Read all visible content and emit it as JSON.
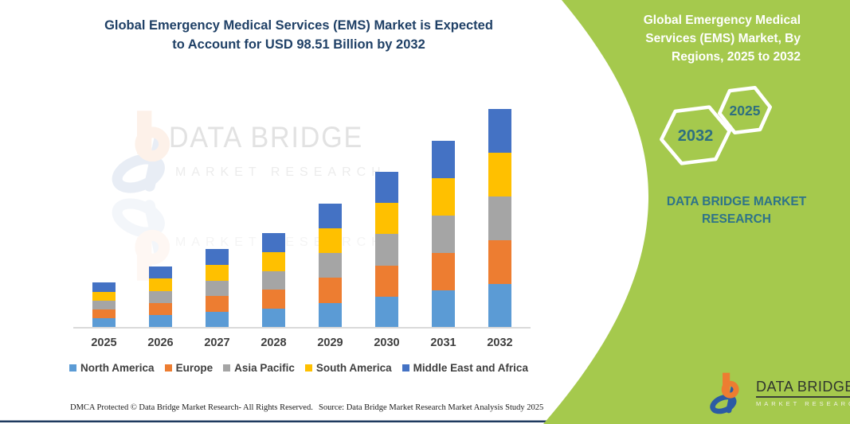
{
  "header": {
    "title_line1": "Global Emergency Medical Services (EMS) Market is Expected",
    "title_line2": "to Account for USD 98.51 Billion by 2032"
  },
  "watermark": {
    "brand": "DATA BRIDGE",
    "tagline": "MARKET RESEARCH",
    "ghost": "MARKET RESEARCH"
  },
  "chart_data": {
    "type": "bar",
    "stacked": true,
    "title": "Global Emergency Medical Services (EMS) Market, By Regions, 2025 to 2032",
    "unit": "USD Billion",
    "categories": [
      "2025",
      "2026",
      "2027",
      "2028",
      "2029",
      "2030",
      "2031",
      "2032"
    ],
    "series": [
      {
        "name": "North America",
        "color": "#5B9BD5",
        "values": [
          4.2,
          5.6,
          7.1,
          8.6,
          11.2,
          14.1,
          16.9,
          19.7
        ]
      },
      {
        "name": "Europe",
        "color": "#ED7D31",
        "values": [
          4.0,
          5.5,
          7.1,
          8.5,
          11.2,
          14.0,
          16.9,
          19.7
        ]
      },
      {
        "name": "Asia Pacific",
        "color": "#A5A5A5",
        "values": [
          4.0,
          5.5,
          7.0,
          8.5,
          11.2,
          14.0,
          16.8,
          19.7
        ]
      },
      {
        "name": "South America",
        "color": "#FFC000",
        "values": [
          4.1,
          5.5,
          7.1,
          8.5,
          11.1,
          14.0,
          16.8,
          19.7
        ]
      },
      {
        "name": "Middle East and Africa",
        "color": "#4472C4",
        "values": [
          4.1,
          5.5,
          7.1,
          8.5,
          11.2,
          14.1,
          16.9,
          19.71
        ]
      }
    ],
    "totals": [
      20.4,
      27.6,
      35.4,
      42.6,
      55.9,
      70.2,
      84.3,
      98.51
    ],
    "ylim": [
      0,
      100
    ],
    "y_axis_visible": false,
    "grid": false,
    "legend_position": "bottom"
  },
  "footer": {
    "left": "DMCA Protected © Data Bridge Market Research-  All Rights Reserved.",
    "right": "Source: Data Bridge Market Research  Market Analysis Study 2025"
  },
  "side_panel": {
    "title_line1": "Global Emergency Medical",
    "title_line2": "Services (EMS) Market, By",
    "title_line3": "Regions, 2025 to 2032",
    "hexagons": [
      {
        "label": "2032"
      },
      {
        "label": "2025"
      }
    ],
    "brand": "DATA BRIDGE MARKET RESEARCH",
    "colors": {
      "panel_green": "#A5C94D",
      "hex_text": "#2E6F80",
      "brand_text": "#2E7389"
    }
  },
  "logo": {
    "name": "DATA BRIDGE",
    "tagline": "MARKET RESEARCH"
  }
}
